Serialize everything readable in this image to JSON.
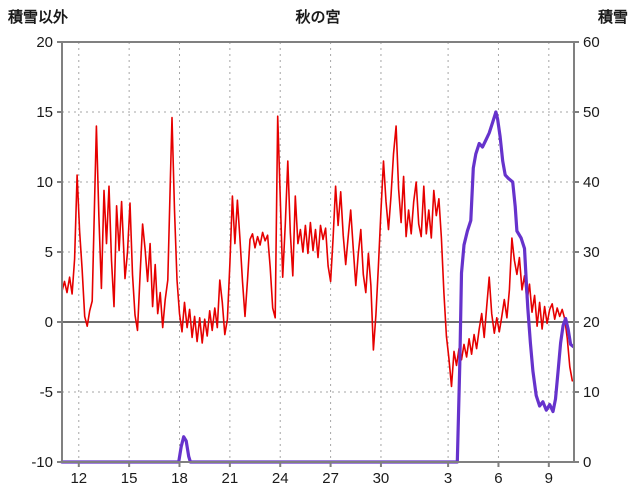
{
  "chart_data": {
    "type": "line",
    "title": "秋の宮",
    "left_axis": {
      "title": "積雪以外",
      "range": [
        -10,
        20
      ],
      "ticks": [
        20,
        15,
        10,
        5,
        0,
        -5,
        -10
      ]
    },
    "right_axis": {
      "title": "積雪",
      "range": [
        0,
        60
      ],
      "ticks": [
        60,
        50,
        40,
        30,
        20,
        10,
        0
      ]
    },
    "x_axis": {
      "range": [
        0,
        30.5
      ],
      "ticks": [
        {
          "t": 1,
          "label": "12"
        },
        {
          "t": 4,
          "label": "15"
        },
        {
          "t": 7,
          "label": "18"
        },
        {
          "t": 10,
          "label": "21"
        },
        {
          "t": 13,
          "label": "24"
        },
        {
          "t": 16,
          "label": "27"
        },
        {
          "t": 19,
          "label": "30"
        },
        {
          "t": 23,
          "label": "3"
        },
        {
          "t": 26,
          "label": "6"
        },
        {
          "t": 29,
          "label": "9"
        }
      ]
    },
    "style": {
      "frame_color": "#808080",
      "grid_color": "#a6a6a6",
      "zero_line_color": "#595959",
      "text_color": "#1a1a1a",
      "background": "#ffffff"
    },
    "zero_line_left_value": 0,
    "series": [
      {
        "name": "積雪以外",
        "data_name": "temperature-line",
        "axis": "left",
        "color": "#e60000",
        "width": 1.6,
        "points": [
          [
            0.0,
            2.2
          ],
          [
            0.15,
            2.9
          ],
          [
            0.3,
            2.1
          ],
          [
            0.45,
            3.2
          ],
          [
            0.6,
            2.0
          ],
          [
            0.75,
            4.5
          ],
          [
            0.9,
            10.5
          ],
          [
            1.05,
            6.5
          ],
          [
            1.2,
            3.8
          ],
          [
            1.35,
            0.4
          ],
          [
            1.5,
            -0.3
          ],
          [
            1.65,
            0.8
          ],
          [
            1.8,
            1.5
          ],
          [
            1.95,
            9.0
          ],
          [
            2.05,
            14.0
          ],
          [
            2.2,
            7.5
          ],
          [
            2.35,
            2.4
          ],
          [
            2.5,
            9.4
          ],
          [
            2.65,
            5.6
          ],
          [
            2.8,
            9.7
          ],
          [
            2.95,
            4.4
          ],
          [
            3.1,
            1.1
          ],
          [
            3.25,
            8.3
          ],
          [
            3.4,
            5.1
          ],
          [
            3.55,
            8.6
          ],
          [
            3.75,
            3.1
          ],
          [
            3.9,
            5.0
          ],
          [
            4.05,
            8.5
          ],
          [
            4.2,
            3.4
          ],
          [
            4.35,
            0.5
          ],
          [
            4.5,
            -0.6
          ],
          [
            4.65,
            3.4
          ],
          [
            4.8,
            7.0
          ],
          [
            4.95,
            5.2
          ],
          [
            5.1,
            2.9
          ],
          [
            5.25,
            5.6
          ],
          [
            5.4,
            1.1
          ],
          [
            5.55,
            4.1
          ],
          [
            5.7,
            0.6
          ],
          [
            5.85,
            2.1
          ],
          [
            6.0,
            -0.4
          ],
          [
            6.15,
            1.6
          ],
          [
            6.3,
            3.0
          ],
          [
            6.45,
            10.0
          ],
          [
            6.55,
            14.6
          ],
          [
            6.7,
            8.0
          ],
          [
            6.85,
            3.0
          ],
          [
            7.0,
            0.6
          ],
          [
            7.15,
            -0.7
          ],
          [
            7.3,
            1.4
          ],
          [
            7.45,
            -0.4
          ],
          [
            7.6,
            0.9
          ],
          [
            7.75,
            -1.1
          ],
          [
            7.9,
            0.4
          ],
          [
            8.05,
            -1.4
          ],
          [
            8.2,
            0.3
          ],
          [
            8.35,
            -1.5
          ],
          [
            8.5,
            0.2
          ],
          [
            8.65,
            -1.0
          ],
          [
            8.8,
            0.8
          ],
          [
            8.95,
            -0.6
          ],
          [
            9.1,
            1.0
          ],
          [
            9.25,
            -0.4
          ],
          [
            9.4,
            3.0
          ],
          [
            9.55,
            1.4
          ],
          [
            9.7,
            -0.9
          ],
          [
            9.85,
            0.2
          ],
          [
            10.0,
            4.2
          ],
          [
            10.15,
            9.0
          ],
          [
            10.3,
            5.6
          ],
          [
            10.45,
            8.7
          ],
          [
            10.6,
            6.0
          ],
          [
            10.75,
            2.9
          ],
          [
            10.9,
            0.4
          ],
          [
            11.05,
            3.0
          ],
          [
            11.2,
            5.9
          ],
          [
            11.35,
            6.3
          ],
          [
            11.5,
            5.3
          ],
          [
            11.65,
            6.1
          ],
          [
            11.8,
            5.5
          ],
          [
            11.95,
            6.4
          ],
          [
            12.1,
            5.8
          ],
          [
            12.25,
            6.2
          ],
          [
            12.4,
            3.9
          ],
          [
            12.55,
            1.0
          ],
          [
            12.7,
            0.3
          ],
          [
            12.85,
            14.7
          ],
          [
            13.0,
            9.0
          ],
          [
            13.15,
            3.2
          ],
          [
            13.3,
            7.0
          ],
          [
            13.45,
            11.5
          ],
          [
            13.6,
            6.4
          ],
          [
            13.75,
            3.3
          ],
          [
            13.9,
            9.0
          ],
          [
            14.05,
            5.6
          ],
          [
            14.2,
            6.6
          ],
          [
            14.35,
            5.0
          ],
          [
            14.5,
            6.9
          ],
          [
            14.65,
            4.9
          ],
          [
            14.8,
            7.1
          ],
          [
            14.95,
            5.1
          ],
          [
            15.1,
            6.6
          ],
          [
            15.25,
            4.6
          ],
          [
            15.4,
            6.9
          ],
          [
            15.55,
            5.9
          ],
          [
            15.7,
            6.7
          ],
          [
            15.85,
            4.0
          ],
          [
            16.0,
            2.9
          ],
          [
            16.15,
            6.0
          ],
          [
            16.3,
            9.7
          ],
          [
            16.45,
            6.9
          ],
          [
            16.6,
            9.3
          ],
          [
            16.75,
            6.2
          ],
          [
            16.9,
            4.1
          ],
          [
            17.05,
            6.1
          ],
          [
            17.2,
            8.0
          ],
          [
            17.35,
            5.2
          ],
          [
            17.5,
            2.6
          ],
          [
            17.65,
            4.9
          ],
          [
            17.8,
            6.6
          ],
          [
            17.95,
            3.4
          ],
          [
            18.1,
            2.1
          ],
          [
            18.25,
            4.9
          ],
          [
            18.4,
            2.6
          ],
          [
            18.55,
            -2.0
          ],
          [
            18.7,
            0.5
          ],
          [
            18.85,
            4.0
          ],
          [
            19.0,
            8.0
          ],
          [
            19.15,
            11.5
          ],
          [
            19.3,
            8.6
          ],
          [
            19.45,
            6.6
          ],
          [
            19.6,
            9.0
          ],
          [
            19.75,
            12.0
          ],
          [
            19.9,
            14.0
          ],
          [
            20.05,
            9.5
          ],
          [
            20.2,
            7.1
          ],
          [
            20.35,
            10.4
          ],
          [
            20.5,
            6.1
          ],
          [
            20.65,
            8.0
          ],
          [
            20.8,
            6.3
          ],
          [
            20.95,
            8.6
          ],
          [
            21.1,
            10.0
          ],
          [
            21.25,
            7.0
          ],
          [
            21.4,
            6.1
          ],
          [
            21.55,
            9.7
          ],
          [
            21.7,
            6.3
          ],
          [
            21.85,
            8.0
          ],
          [
            22.0,
            6.0
          ],
          [
            22.15,
            9.4
          ],
          [
            22.3,
            7.6
          ],
          [
            22.45,
            8.8
          ],
          [
            22.6,
            6.0
          ],
          [
            22.75,
            2.1
          ],
          [
            22.9,
            -1.0
          ],
          [
            23.05,
            -2.6
          ],
          [
            23.2,
            -4.6
          ],
          [
            23.35,
            -2.1
          ],
          [
            23.5,
            -3.1
          ],
          [
            23.65,
            -1.9
          ],
          [
            23.8,
            -2.7
          ],
          [
            23.95,
            -1.6
          ],
          [
            24.1,
            -2.5
          ],
          [
            24.25,
            -1.2
          ],
          [
            24.4,
            -2.3
          ],
          [
            24.55,
            -0.9
          ],
          [
            24.7,
            -1.9
          ],
          [
            24.85,
            -0.5
          ],
          [
            25.0,
            0.6
          ],
          [
            25.15,
            -1.1
          ],
          [
            25.3,
            1.1
          ],
          [
            25.45,
            3.2
          ],
          [
            25.6,
            0.6
          ],
          [
            25.75,
            -0.8
          ],
          [
            25.9,
            0.3
          ],
          [
            26.05,
            -0.7
          ],
          [
            26.2,
            0.4
          ],
          [
            26.35,
            1.6
          ],
          [
            26.5,
            0.3
          ],
          [
            26.65,
            2.3
          ],
          [
            26.8,
            6.0
          ],
          [
            26.95,
            4.4
          ],
          [
            27.1,
            3.4
          ],
          [
            27.25,
            4.6
          ],
          [
            27.4,
            2.3
          ],
          [
            27.55,
            3.3
          ],
          [
            27.7,
            1.5
          ],
          [
            27.85,
            2.7
          ],
          [
            28.0,
            0.7
          ],
          [
            28.15,
            1.9
          ],
          [
            28.3,
            -0.3
          ],
          [
            28.45,
            1.4
          ],
          [
            28.6,
            -0.5
          ],
          [
            28.75,
            1.1
          ],
          [
            28.9,
            -0.1
          ],
          [
            29.05,
            0.9
          ],
          [
            29.2,
            1.3
          ],
          [
            29.35,
            0.2
          ],
          [
            29.5,
            1.0
          ],
          [
            29.65,
            0.4
          ],
          [
            29.8,
            0.9
          ],
          [
            29.95,
            0.2
          ],
          [
            30.1,
            -1.2
          ],
          [
            30.25,
            -3.2
          ],
          [
            30.4,
            -4.2
          ]
        ]
      },
      {
        "name": "積雪",
        "data_name": "snow-depth-line",
        "axis": "right",
        "color": "#6633cc",
        "width": 3.2,
        "points": [
          [
            0,
            0
          ],
          [
            6.95,
            0
          ],
          [
            7.1,
            2.2
          ],
          [
            7.25,
            3.6
          ],
          [
            7.4,
            3.0
          ],
          [
            7.55,
            0.8
          ],
          [
            7.65,
            0
          ],
          [
            23.55,
            0
          ],
          [
            23.7,
            14
          ],
          [
            23.8,
            27
          ],
          [
            23.95,
            31
          ],
          [
            24.15,
            33
          ],
          [
            24.35,
            34.5
          ],
          [
            24.5,
            42
          ],
          [
            24.65,
            44
          ],
          [
            24.85,
            45.5
          ],
          [
            25.05,
            45
          ],
          [
            25.25,
            46
          ],
          [
            25.45,
            47
          ],
          [
            25.65,
            48.5
          ],
          [
            25.85,
            50
          ],
          [
            25.95,
            49
          ],
          [
            26.1,
            46.5
          ],
          [
            26.25,
            43
          ],
          [
            26.4,
            41
          ],
          [
            26.6,
            40.5
          ],
          [
            26.85,
            40
          ],
          [
            27.0,
            36.5
          ],
          [
            27.1,
            33
          ],
          [
            27.35,
            32
          ],
          [
            27.55,
            30.5
          ],
          [
            27.65,
            26
          ],
          [
            27.75,
            22
          ],
          [
            27.9,
            17
          ],
          [
            28.05,
            13
          ],
          [
            28.25,
            9.5
          ],
          [
            28.45,
            8
          ],
          [
            28.65,
            8.6
          ],
          [
            28.85,
            7.4
          ],
          [
            29.05,
            8.2
          ],
          [
            29.25,
            7.2
          ],
          [
            29.4,
            9
          ],
          [
            29.55,
            13
          ],
          [
            29.7,
            17
          ],
          [
            29.85,
            19.5
          ],
          [
            30.0,
            20.5
          ],
          [
            30.15,
            19
          ],
          [
            30.3,
            16.8
          ],
          [
            30.45,
            16.5
          ]
        ]
      }
    ]
  }
}
